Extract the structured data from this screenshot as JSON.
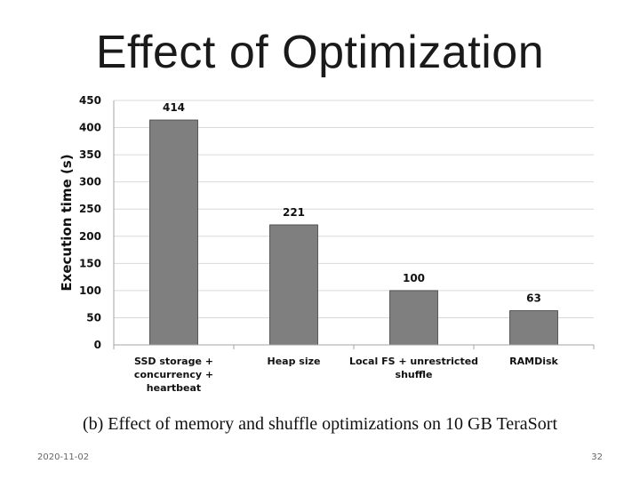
{
  "slide": {
    "title": "Effect of Optimization",
    "caption": "(b) Effect of memory and shuffle optimizations on 10 GB TeraSort",
    "date": "2020-11-02",
    "page_number": "32"
  },
  "chart_data": {
    "type": "bar",
    "categories": [
      [
        "SSD storage +",
        "concurrency +",
        "heartbeat"
      ],
      [
        "Heap size"
      ],
      [
        "Local FS + unrestricted",
        "shuffle"
      ],
      [
        "RAMDisk"
      ]
    ],
    "values": [
      414,
      221,
      100,
      63
    ],
    "data_labels": [
      "414",
      "221",
      "100",
      "63"
    ],
    "ylabel": "Execution time (s)",
    "xlabel": "",
    "ylim": [
      0,
      450
    ],
    "yticks": [
      0,
      50,
      100,
      150,
      200,
      250,
      300,
      350,
      400,
      450
    ],
    "grid": true,
    "bar_color": "#7f7f7f",
    "grid_color": "#d9d9d9"
  }
}
